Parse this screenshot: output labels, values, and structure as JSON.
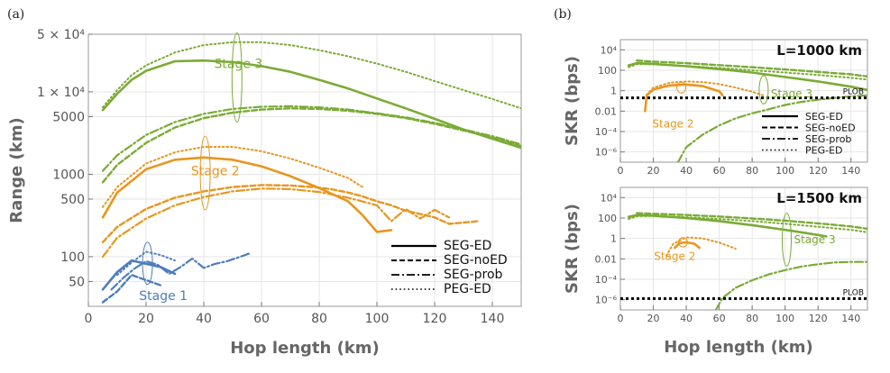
{
  "colors": {
    "stage3": "#7aab35",
    "stage2": "#e8961f",
    "stage1": "#4e7dbd",
    "plob": "#000000"
  },
  "styles": {
    "SEG-ED": {
      "dash": "",
      "width": 2.6
    },
    "SEG-noED": {
      "dash": "6,3",
      "width": 2.4
    },
    "SEG-prob": {
      "dash": "9,3,2,3",
      "width": 2.2
    },
    "PEG-ED": {
      "dash": "1.6,3",
      "width": 2.0
    }
  },
  "chart_data": [
    {
      "id": "a",
      "panel_label": "(a)",
      "type": "line",
      "xlabel": "Hop length (km)",
      "ylabel": "Range (km)",
      "xlim": [
        0,
        150
      ],
      "ylim": [
        25,
        50000
      ],
      "yscale": "log",
      "grid": true,
      "xticks": [
        0,
        20,
        40,
        60,
        80,
        100,
        120,
        140
      ],
      "yticks": [
        {
          "value": 50,
          "label": "50"
        },
        {
          "value": 100,
          "label": "100"
        },
        {
          "value": 500,
          "label": "500"
        },
        {
          "value": 1000,
          "label": "1000"
        },
        {
          "value": 5000,
          "label": "5000"
        },
        {
          "value": 10000,
          "label": "1 × 10⁴"
        },
        {
          "value": 50000,
          "label": "5 × 10⁴"
        }
      ],
      "legend": {
        "placement": "bottom-right",
        "entries": [
          {
            "label": "SEG-ED",
            "style": "SEG-ED"
          },
          {
            "label": "SEG-noED",
            "style": "SEG-noED"
          },
          {
            "label": "SEG-prob",
            "style": "SEG-prob"
          },
          {
            "label": "PEG-ED",
            "style": "PEG-ED"
          }
        ]
      },
      "annotations": [
        {
          "text": "Stage 3",
          "color": "stage3",
          "x": 52,
          "y": 22000,
          "ex": 51.5,
          "ey_low": 4300,
          "ey_high": 52000
        },
        {
          "text": "Stage 2",
          "color": "stage2",
          "x": 44,
          "y": 1100,
          "ex": 40.5,
          "ey_low": 370,
          "ey_high": 2900
        },
        {
          "text": "Stage 1",
          "color": "stage1",
          "x": 26,
          "y": 34,
          "ex": 20.5,
          "ey_low": 46,
          "ey_high": 150
        }
      ],
      "series": [
        {
          "name": "Stage 3 PEG-ED",
          "color": "stage3",
          "style": "PEG-ED",
          "x": [
            5,
            10,
            15,
            20,
            30,
            40,
            50,
            60,
            70,
            80,
            90,
            100,
            110,
            120,
            130,
            140,
            150
          ],
          "y": [
            6500,
            10500,
            16000,
            21000,
            30000,
            37000,
            40000,
            40000,
            37000,
            32000,
            27000,
            22000,
            17500,
            13500,
            10500,
            8200,
            6300
          ]
        },
        {
          "name": "Stage 3 SEG-ED",
          "color": "stage3",
          "style": "SEG-ED",
          "x": [
            5,
            10,
            15,
            20,
            30,
            40,
            50,
            60,
            70,
            80,
            90,
            100,
            110,
            120,
            130,
            140,
            150
          ],
          "y": [
            6000,
            9500,
            14000,
            18000,
            23500,
            24000,
            23000,
            20500,
            17500,
            14000,
            11000,
            8300,
            6300,
            4700,
            3500,
            2700,
            2100
          ]
        },
        {
          "name": "Stage 3 SEG-noED",
          "color": "stage3",
          "style": "SEG-noED",
          "x": [
            5,
            10,
            20,
            30,
            40,
            50,
            60,
            70,
            80,
            90,
            100,
            110,
            120,
            130,
            140,
            150
          ],
          "y": [
            800,
            1300,
            2400,
            3700,
            4800,
            5600,
            6100,
            6300,
            6200,
            5900,
            5400,
            4800,
            4100,
            3400,
            2800,
            2200
          ]
        },
        {
          "name": "Stage 3 SEG-prob",
          "color": "stage3",
          "style": "SEG-prob",
          "x": [
            5,
            10,
            20,
            30,
            40,
            50,
            60,
            70,
            80,
            90,
            100,
            110,
            120,
            130,
            140,
            150
          ],
          "y": [
            1100,
            1700,
            3000,
            4300,
            5400,
            6200,
            6600,
            6700,
            6500,
            6100,
            5500,
            4900,
            4200,
            3500,
            2900,
            2300
          ]
        },
        {
          "name": "Stage 2 PEG-ED",
          "color": "stage2",
          "style": "PEG-ED",
          "x": [
            5,
            10,
            20,
            30,
            40,
            50,
            60,
            70,
            80,
            90,
            95
          ],
          "y": [
            400,
            700,
            1350,
            1850,
            2150,
            2150,
            1900,
            1550,
            1200,
            900,
            700
          ]
        },
        {
          "name": "Stage 2 SEG-ED",
          "color": "stage2",
          "style": "SEG-ED",
          "x": [
            5,
            10,
            20,
            30,
            40,
            50,
            60,
            70,
            80,
            90,
            95,
            100,
            105
          ],
          "y": [
            300,
            600,
            1150,
            1500,
            1600,
            1500,
            1250,
            950,
            680,
            470,
            320,
            200,
            210
          ]
        },
        {
          "name": "Stage 2 SEG-noED",
          "color": "stage2",
          "style": "SEG-noED",
          "x": [
            5,
            10,
            20,
            30,
            40,
            50,
            60,
            70,
            80,
            85,
            90,
            95,
            100,
            105,
            110,
            115,
            120,
            125,
            135
          ],
          "y": [
            150,
            230,
            380,
            520,
            620,
            700,
            740,
            730,
            690,
            650,
            600,
            540,
            470,
            420,
            360,
            330,
            300,
            250,
            270
          ]
        },
        {
          "name": "Stage 2 SEG-prob",
          "color": "stage2",
          "style": "SEG-prob",
          "x": [
            5,
            10,
            20,
            30,
            40,
            50,
            60,
            70,
            80,
            90,
            100,
            105,
            110,
            115,
            120,
            125
          ],
          "y": [
            100,
            170,
            290,
            420,
            530,
            620,
            670,
            660,
            610,
            520,
            420,
            270,
            380,
            290,
            370,
            300
          ]
        },
        {
          "name": "Stage 1 SEG-ED",
          "color": "stage1",
          "style": "SEG-ED",
          "x": [
            5,
            10,
            15,
            20,
            25,
            30
          ],
          "y": [
            40,
            65,
            90,
            82,
            75,
            62
          ]
        },
        {
          "name": "Stage 1 SEG-noED",
          "color": "stage1",
          "style": "SEG-noED",
          "x": [
            5,
            10,
            15,
            20,
            25
          ],
          "y": [
            28,
            38,
            60,
            52,
            45
          ]
        },
        {
          "name": "Stage 1 SEG-prob",
          "color": "stage1",
          "style": "SEG-prob",
          "x": [
            8,
            12,
            16,
            20,
            24,
            28,
            32,
            36,
            40,
            44,
            48,
            52,
            56
          ],
          "y": [
            40,
            55,
            72,
            88,
            80,
            62,
            75,
            95,
            73,
            82,
            88,
            98,
            110
          ]
        },
        {
          "name": "Stage 1 PEG-ED",
          "color": "stage1",
          "style": "PEG-ED",
          "x": [
            10,
            15,
            20,
            25,
            30
          ],
          "y": [
            60,
            85,
            115,
            105,
            90
          ]
        }
      ]
    },
    {
      "id": "b1",
      "panel_label": "(b)",
      "type": "line",
      "title": "L=1000 km",
      "xlabel": "",
      "ylabel": "SKR (bps)",
      "xlim": [
        0,
        150
      ],
      "ylim": [
        1e-07,
        100000
      ],
      "yscale": "log",
      "grid": true,
      "xticks": [
        0,
        20,
        40,
        60,
        80,
        100,
        120,
        140
      ],
      "yticks": [
        {
          "value": 10000,
          "label": "10⁴"
        },
        {
          "value": 100,
          "label": "100"
        },
        {
          "value": 1,
          "label": "1"
        },
        {
          "value": 0.01,
          "label": "0.01"
        },
        {
          "value": 0.0001,
          "label": "10⁻⁴"
        },
        {
          "value": 1e-06,
          "label": "10⁻⁶"
        }
      ],
      "plob": {
        "label": "PLOB",
        "value": 0.2
      },
      "legend": {
        "placement": "middle-right",
        "entries": [
          {
            "label": "SEG-ED",
            "style": "SEG-ED"
          },
          {
            "label": "SEG-noED",
            "style": "SEG-noED"
          },
          {
            "label": "SEG-prob",
            "style": "SEG-prob"
          },
          {
            "label": "PEG-ED",
            "style": "PEG-ED"
          }
        ]
      },
      "annotations": [
        {
          "text": "Stage 3",
          "color": "stage3",
          "x": 104,
          "y": 0.6,
          "ex": 87,
          "ey_low": 0.05,
          "ey_high": 30
        },
        {
          "text": "Stage 2",
          "color": "stage2",
          "x": 32,
          "y": 0.0007,
          "ex": 37,
          "ey_low": 0.6,
          "ey_high": 7
        }
      ],
      "series": [
        {
          "name": "Stage 3 SEG-ED",
          "color": "stage3",
          "style": "SEG-ED",
          "x": [
            5,
            10,
            20,
            40,
            60,
            80,
            100,
            120,
            140,
            150
          ],
          "y": [
            300,
            500,
            420,
            250,
            130,
            60,
            22,
            8,
            2.5,
            1.2
          ]
        },
        {
          "name": "Stage 3 SEG-noED",
          "color": "stage3",
          "style": "SEG-noED",
          "x": [
            10,
            20,
            40,
            60,
            80,
            100,
            120,
            140,
            150
          ],
          "y": [
            900,
            700,
            500,
            320,
            200,
            120,
            70,
            40,
            25
          ]
        },
        {
          "name": "Stage 3 PEG-ED",
          "color": "stage3",
          "style": "PEG-ED",
          "x": [
            5,
            10,
            20,
            40,
            60,
            80,
            100,
            120,
            140,
            150
          ],
          "y": [
            200,
            400,
            380,
            260,
            170,
            100,
            60,
            35,
            18,
            12
          ]
        },
        {
          "name": "Stage 3 SEG-prob",
          "color": "stage3",
          "style": "SEG-prob",
          "x": [
            35,
            40,
            50,
            60,
            70,
            80,
            90,
            100,
            110,
            120,
            130,
            140,
            150
          ],
          "y": [
            1e-07,
            3e-06,
            5e-05,
            0.0004,
            0.002,
            0.006,
            0.015,
            0.04,
            0.08,
            0.13,
            0.2,
            0.28,
            0.35
          ]
        },
        {
          "name": "Stage 2 SEG-ED",
          "color": "stage2",
          "style": "SEG-ED",
          "x": [
            15,
            16,
            20,
            30,
            40,
            50,
            60,
            62
          ],
          "y": [
            0.01,
            0.35,
            1.3,
            3.3,
            4.0,
            2.8,
            0.9,
            0.35
          ]
        },
        {
          "name": "Stage 2 PEG-ED",
          "color": "stage2",
          "style": "PEG-ED",
          "x": [
            16,
            20,
            30,
            40,
            50,
            60,
            70,
            80,
            88
          ],
          "y": [
            0.4,
            2.0,
            6.0,
            8.0,
            7.0,
            4.5,
            2.0,
            0.8,
            0.3
          ]
        }
      ]
    },
    {
      "id": "b2",
      "panel_label": "",
      "type": "line",
      "title": "L=1500 km",
      "xlabel": "Hop length (km)",
      "ylabel": "SKR (bps)",
      "xlim": [
        0,
        150
      ],
      "ylim": [
        1e-07,
        100000
      ],
      "yscale": "log",
      "grid": true,
      "xticks": [
        0,
        20,
        40,
        60,
        80,
        100,
        120,
        140
      ],
      "yticks": [
        {
          "value": 10000,
          "label": "10⁴"
        },
        {
          "value": 100,
          "label": "100"
        },
        {
          "value": 1,
          "label": "1"
        },
        {
          "value": 0.01,
          "label": "0.01"
        },
        {
          "value": 0.0001,
          "label": "10⁻⁴"
        },
        {
          "value": 1e-06,
          "label": "10⁻⁶"
        }
      ],
      "plob": {
        "label": "PLOB",
        "value": 1.3e-06
      },
      "annotations": [
        {
          "text": "Stage 3",
          "color": "stage3",
          "x": 118,
          "y": 0.9,
          "ex": 101,
          "ey_low": 0.002,
          "ey_high": 300
        },
        {
          "text": "Stage 2",
          "color": "stage2",
          "x": 33,
          "y": 0.022,
          "ex": 38,
          "ey_low": 0.15,
          "ey_high": 1.2
        }
      ],
      "series": [
        {
          "name": "Stage 3 SEG-ED",
          "color": "stage3",
          "style": "SEG-ED",
          "x": [
            5,
            10,
            20,
            40,
            60,
            80,
            100,
            120,
            125
          ],
          "y": [
            130,
            190,
            170,
            100,
            50,
            20,
            7,
            2.2,
            1.6
          ]
        },
        {
          "name": "Stage 3 SEG-noED",
          "color": "stage3",
          "style": "SEG-noED",
          "x": [
            10,
            20,
            40,
            60,
            80,
            100,
            120,
            140,
            150
          ],
          "y": [
            300,
            260,
            200,
            140,
            90,
            55,
            30,
            15,
            9
          ]
        },
        {
          "name": "Stage 3 PEG-ED",
          "color": "stage3",
          "style": "PEG-ED",
          "x": [
            5,
            10,
            20,
            40,
            60,
            80,
            100,
            120,
            140,
            150
          ],
          "y": [
            80,
            150,
            160,
            120,
            80,
            50,
            28,
            14,
            7,
            4
          ]
        },
        {
          "name": "Stage 3 SEG-prob",
          "color": "stage3",
          "style": "SEG-prob",
          "x": [
            58,
            62,
            70,
            80,
            90,
            100,
            110,
            120,
            130,
            140,
            150
          ],
          "y": [
            1e-07,
            1.5e-06,
            1.5e-05,
            8e-05,
            0.0003,
            0.0008,
            0.0018,
            0.003,
            0.0045,
            0.005,
            0.005
          ]
        },
        {
          "name": "Stage 2 SEG-ED",
          "color": "stage2",
          "style": "SEG-ED",
          "x": [
            33,
            36,
            40,
            45,
            48
          ],
          "y": [
            0.12,
            0.35,
            0.42,
            0.3,
            0.12
          ]
        },
        {
          "name": "Stage 2 PEG-ED",
          "color": "stage2",
          "style": "PEG-ED",
          "x": [
            28,
            32,
            40,
            50,
            60,
            70
          ],
          "y": [
            0.02,
            0.3,
            1.3,
            1.0,
            0.4,
            0.1
          ]
        }
      ]
    }
  ]
}
